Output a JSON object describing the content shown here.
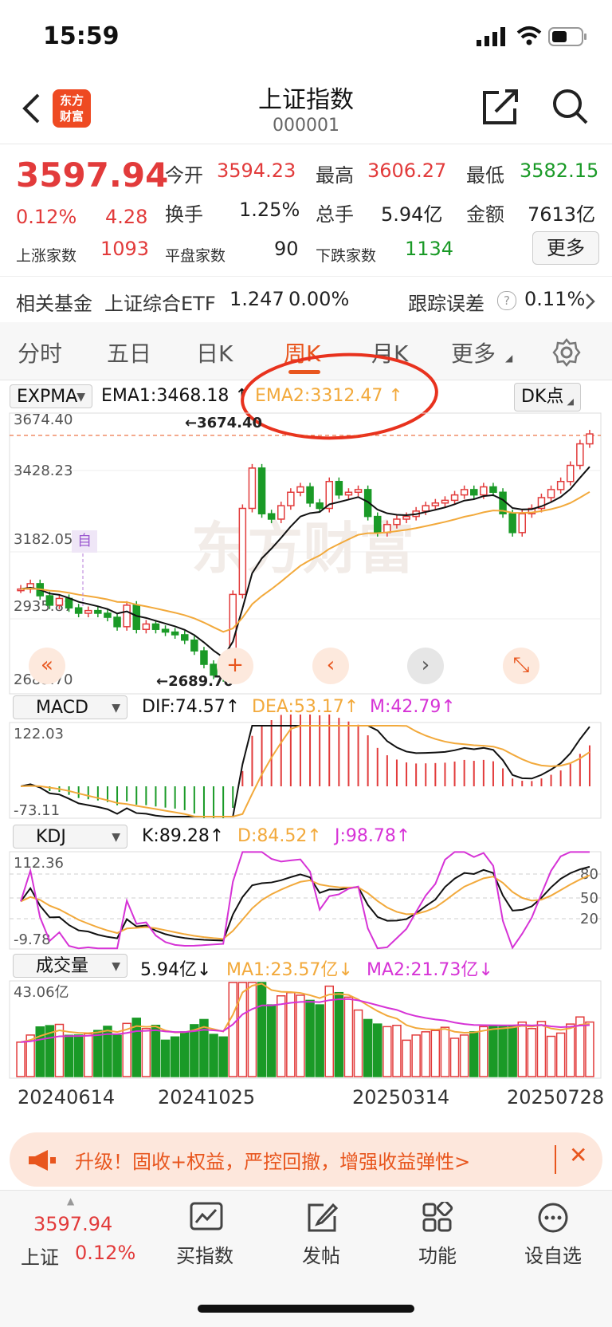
{
  "status_bar": {
    "time": "15:59"
  },
  "nav": {
    "logo_text_1": "东方",
    "logo_text_2": "财富",
    "title": "上证指数",
    "code": "000001"
  },
  "quote": {
    "price": "3597.94",
    "change_pct": "0.12%",
    "change": "4.28",
    "open_label": "今开",
    "open": "3594.23",
    "high_label": "最高",
    "high": "3606.27",
    "low_label": "最低",
    "low": "3582.15",
    "turnover_label": "换手",
    "turnover": "1.25%",
    "volume_label": "总手",
    "volume": "5.94亿",
    "amount_label": "金额",
    "amount": "7613亿",
    "up_label": "上涨家数",
    "up": "1093",
    "flat_label": "平盘家数",
    "flat": "90",
    "down_label": "下跌家数",
    "down": "1134",
    "more": "更多"
  },
  "fund": {
    "label": "相关基金",
    "name": "上证综合ETF",
    "value": "1.247",
    "pct": "0.00%",
    "err_label": "跟踪误差",
    "err_value": "0.11%"
  },
  "tabs": [
    "分时",
    "五日",
    "日K",
    "周K",
    "月K",
    "更多"
  ],
  "main_chart": {
    "indicator": "EXPMA",
    "ema1": "EMA1:3468.18",
    "ema2": "EMA2:3312.47",
    "dk": "DK点",
    "y_labels": [
      "3674.40",
      "3428.23",
      "3182.05",
      "2935.87",
      "2689.70"
    ],
    "max_marker": "3674.40",
    "min_marker": "2689.70",
    "self_tag": "自",
    "watermark": "东方财富"
  },
  "macd": {
    "name": "MACD",
    "dif": "DIF:74.57",
    "dea": "DEA:53.17",
    "m": "M:42.79",
    "y_top": "122.03",
    "y_bottom": "-73.11"
  },
  "kdj": {
    "name": "KDJ",
    "k": "K:89.28",
    "d": "D:84.52",
    "j": "J:98.78",
    "y_top": "112.36",
    "y_bottom": "-9.78",
    "levels": [
      "80",
      "50",
      "20"
    ]
  },
  "volume": {
    "name": "成交量",
    "vol": "5.94亿",
    "ma1": "MA1:23.57亿",
    "ma2": "MA2:21.73亿",
    "y_top": "43.06亿"
  },
  "x_dates": [
    "20240614",
    "20241025",
    "20250314",
    "20250728"
  ],
  "banner": {
    "text": "升级！固收+权益，严控回撤，增强收益弹性>"
  },
  "bottom_nav": {
    "price": "3597.94",
    "name": "上证",
    "pct": "0.12%",
    "items": [
      "买指数",
      "发帖",
      "功能",
      "设自选"
    ]
  },
  "colors": {
    "up": "#e23b3b",
    "down": "#1a9a27",
    "accent": "#e8561e",
    "ema1": "#111111",
    "ema2": "#f2a93b",
    "purple": "#d633d6"
  }
}
